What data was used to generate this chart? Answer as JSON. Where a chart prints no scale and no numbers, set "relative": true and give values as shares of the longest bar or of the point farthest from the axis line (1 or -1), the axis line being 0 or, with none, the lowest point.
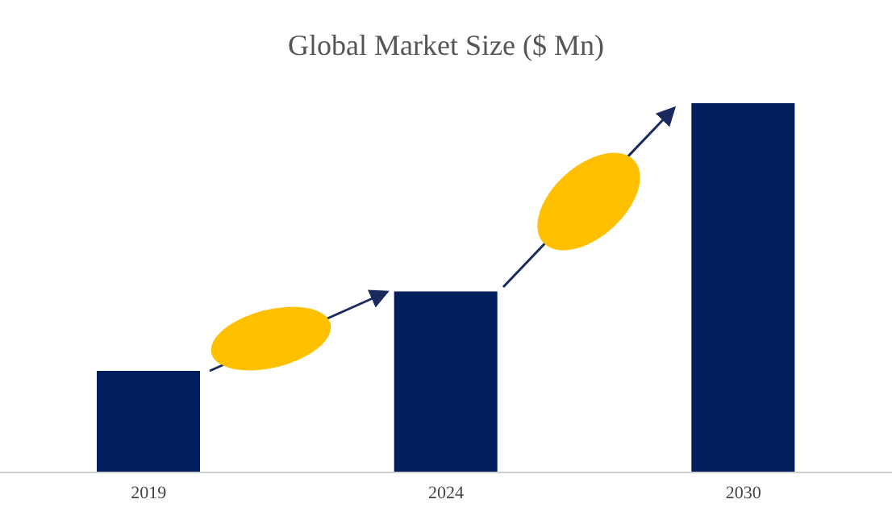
{
  "chart_data": {
    "type": "bar",
    "title": "Global Market Size ($ Mn)",
    "categories": [
      "2019",
      "2024",
      "2030"
    ],
    "values": [
      0.275,
      0.49,
      1
    ],
    "color": "#001f5c",
    "relative": true
  }
}
